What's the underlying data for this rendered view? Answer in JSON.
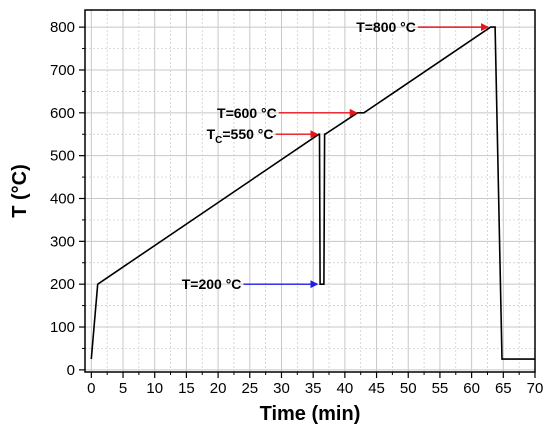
{
  "chart_data": {
    "type": "line",
    "xlabel": "Time (min)",
    "ylabel": "T (°C)",
    "xlim": [
      -1,
      70
    ],
    "ylim": [
      -5,
      840
    ],
    "x_ticks": [
      0,
      5,
      10,
      15,
      20,
      25,
      30,
      35,
      40,
      45,
      50,
      55,
      60,
      65,
      70
    ],
    "y_ticks": [
      0,
      100,
      200,
      300,
      400,
      500,
      600,
      700,
      800
    ],
    "grid": true,
    "series": [
      {
        "x": [
          0,
          1,
          35.9,
          36.0,
          36.1,
          36.7,
          36.8,
          36.9,
          42.0,
          43.0,
          63.0,
          63.7,
          64.8,
          70
        ],
        "y": [
          25,
          200,
          550,
          550,
          200,
          200,
          550,
          550,
          600,
          600,
          800,
          800,
          25,
          25
        ],
        "color": "#000000"
      }
    ],
    "annotations": [
      {
        "id": "tc",
        "text": "T",
        "sub": "C",
        "rest": "=550 °C",
        "arrow_color": "#e8141b",
        "x": 36.0,
        "y": 550
      },
      {
        "id": "t600",
        "text": "T=600 °C",
        "arrow_color": "#e8141b",
        "x": 42.5,
        "y": 600
      },
      {
        "id": "t800",
        "text": "T=800 °C",
        "arrow_color": "#e8141b",
        "x": 63.2,
        "y": 800
      },
      {
        "id": "t200",
        "text": "T=200 °C",
        "arrow_color": "#1e1ee6",
        "x": 36.3,
        "y": 200
      }
    ]
  }
}
